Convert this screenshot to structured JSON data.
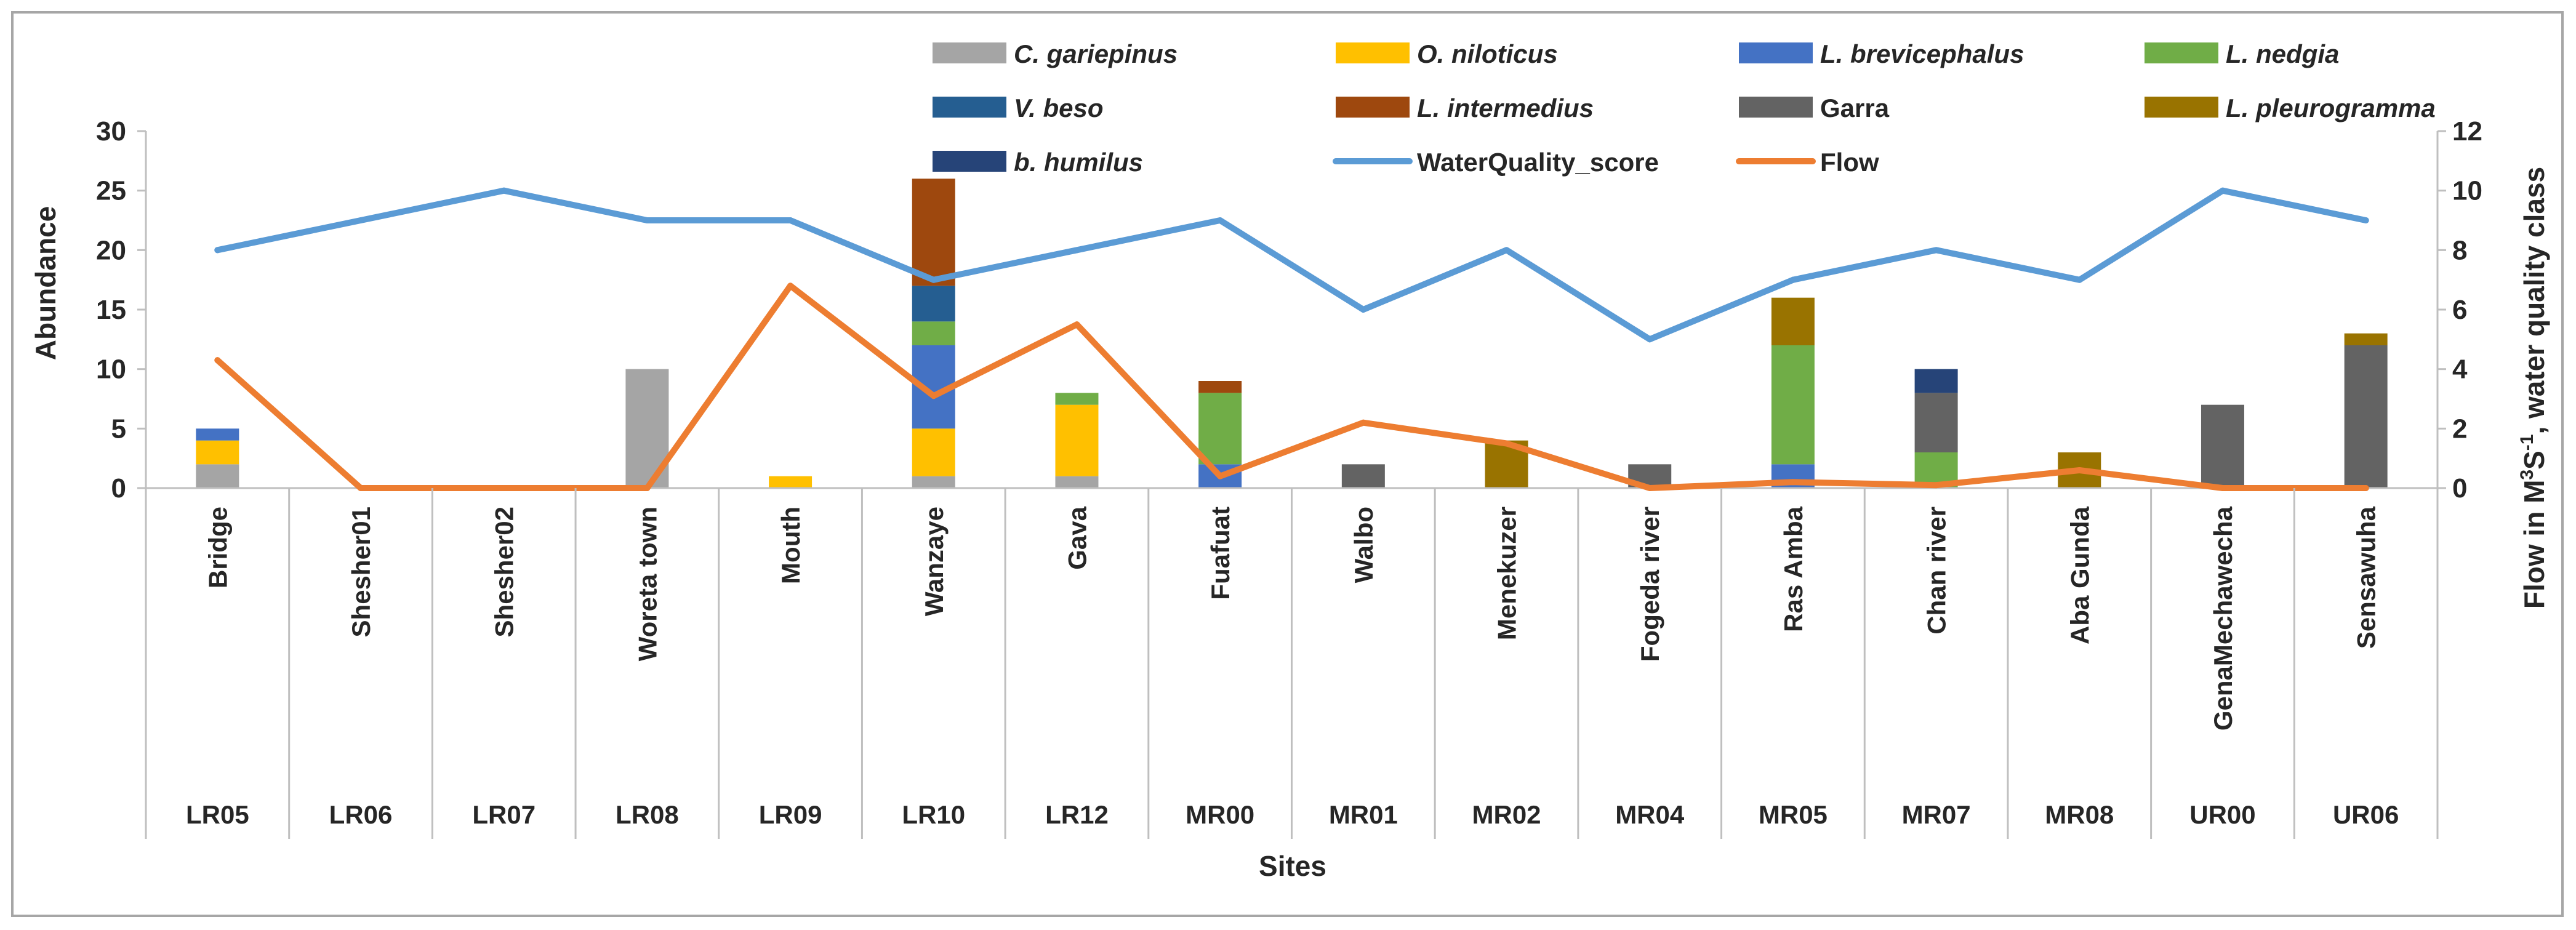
{
  "chart_data": {
    "type": "bar",
    "title": "",
    "xlabel": "Sites",
    "ylabel": "Abundance",
    "y2label": "Flow in M³S⁻¹, water quality class",
    "y2label_main": "Flow in M",
    "y2label_sup1": "3",
    "y2label_mid": "S",
    "y2label_sup2": "-1",
    "y2label_tail": ", water quality class",
    "ylim": [
      0,
      30
    ],
    "y2lim": [
      0,
      12
    ],
    "yticks": [
      "0",
      "5",
      "10",
      "15",
      "20",
      "25",
      "30"
    ],
    "y2ticks": [
      "0",
      "2",
      "4",
      "6",
      "8",
      "10",
      "12"
    ],
    "categories": [
      "Bridge",
      "Shesher01",
      "Shesher02",
      "Woreta town",
      "Mouth",
      "Wanzaye",
      "Gava",
      "Fuafuat",
      "Walbo",
      "Menekuzer",
      "Fogeda river",
      "Ras Amba",
      "Chan river",
      "Aba Gunda",
      "GenaMechawecha",
      "Sensawuha"
    ],
    "codes": [
      "LR05",
      "LR06",
      "LR07",
      "LR08",
      "LR09",
      "LR10",
      "LR12",
      "MR00",
      "MR01",
      "MR02",
      "MR04",
      "MR05",
      "MR07",
      "MR08",
      "UR00",
      "UR06"
    ],
    "series": [
      {
        "name": "C. gariepinus",
        "kind": "bar",
        "italic": true,
        "color": "#a5a5a5",
        "values": [
          2,
          0,
          0,
          10,
          0,
          1,
          1,
          0,
          0,
          0,
          0,
          0,
          0,
          0,
          0,
          0
        ]
      },
      {
        "name": "O. niloticus",
        "kind": "bar",
        "italic": true,
        "color": "#ffc000",
        "values": [
          2,
          0,
          0,
          0,
          1,
          4,
          6,
          0,
          0,
          0,
          0,
          0,
          0,
          0,
          0,
          0
        ]
      },
      {
        "name": "L. brevicephalus",
        "kind": "bar",
        "italic": true,
        "color": "#4472c4",
        "values": [
          1,
          0,
          0,
          0,
          0,
          7,
          0,
          2,
          0,
          0,
          0,
          2,
          0,
          0,
          0,
          0
        ]
      },
      {
        "name": "L. nedgia",
        "kind": "bar",
        "italic": true,
        "color": "#70ad47",
        "values": [
          0,
          0,
          0,
          0,
          0,
          2,
          1,
          6,
          0,
          0,
          0,
          10,
          3,
          0,
          0,
          0
        ]
      },
      {
        "name": "V. beso",
        "kind": "bar",
        "italic": true,
        "color": "#255e91",
        "values": [
          0,
          0,
          0,
          0,
          0,
          3,
          0,
          0,
          0,
          0,
          0,
          0,
          0,
          0,
          0,
          0
        ]
      },
      {
        "name": "L. intermedius",
        "kind": "bar",
        "italic": true,
        "color": "#9e480e",
        "values": [
          0,
          0,
          0,
          0,
          0,
          9,
          0,
          1,
          0,
          0,
          0,
          0,
          0,
          0,
          0,
          0
        ]
      },
      {
        "name": "Garra",
        "kind": "bar",
        "italic": false,
        "color": "#636363",
        "values": [
          0,
          0,
          0,
          0,
          0,
          0,
          0,
          0,
          2,
          0,
          2,
          0,
          5,
          0,
          7,
          12
        ]
      },
      {
        "name": "L. pleurogramma",
        "kind": "bar",
        "italic": true,
        "color": "#997300",
        "values": [
          0,
          0,
          0,
          0,
          0,
          0,
          0,
          0,
          0,
          4,
          0,
          4,
          0,
          3,
          0,
          1
        ]
      },
      {
        "name": "b. humilus",
        "kind": "bar",
        "italic": true,
        "color": "#264478",
        "values": [
          0,
          0,
          0,
          0,
          0,
          0,
          0,
          0,
          0,
          0,
          0,
          0,
          2,
          0,
          0,
          0
        ]
      },
      {
        "name": "WaterQuality_score",
        "kind": "line",
        "axis": "right",
        "italic": false,
        "color": "#5b9bd5",
        "values": [
          8,
          9,
          10,
          9,
          9,
          7,
          8,
          9,
          6,
          8,
          5,
          7,
          8,
          7,
          10,
          9
        ]
      },
      {
        "name": "Flow",
        "kind": "line",
        "axis": "right",
        "italic": false,
        "color": "#ed7d31",
        "values": [
          4.3,
          0,
          0,
          0,
          6.8,
          3.1,
          5.5,
          0.4,
          2.2,
          1.5,
          0,
          0.2,
          0.1,
          0.6,
          0,
          0
        ]
      }
    ],
    "legend_position": "top-right",
    "grid": false
  }
}
